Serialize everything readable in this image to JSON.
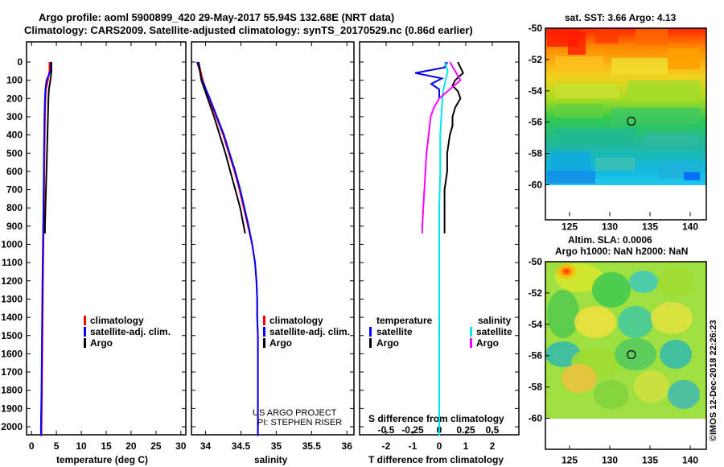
{
  "header": {
    "title_line1": "Argo profile: aoml 5900899_420 29-May-2017 55.94S 132.68E (NRT data)",
    "title_line2": "Climatology: CARS2009. Satellite-adjusted climatology: synTS_20170529.nc (0.86d earlier)"
  },
  "depth_ticks": [
    "0",
    "100",
    "200",
    "300",
    "400",
    "500",
    "600",
    "700",
    "800",
    "900",
    "1000",
    "1100",
    "1200",
    "1300",
    "1400",
    "1500",
    "1600",
    "1700",
    "1800",
    "1900",
    "2000"
  ],
  "colors": {
    "climatology": "#ff0000",
    "satellite": "#0000ff",
    "argo": "#000000",
    "sat_salinity": "#00e5ee",
    "clim_salinity": "#ff00ff"
  },
  "chart_data": [
    {
      "type": "line",
      "xlabel": "temperature (deg C)",
      "xlim": [
        -1,
        31
      ],
      "ylim": [
        2050,
        0
      ],
      "x_ticks": [
        "0",
        "5",
        "10",
        "15",
        "20",
        "25",
        "30"
      ],
      "legend": [
        "climatology",
        "satellite-adj. clim.",
        "Argo"
      ],
      "series": [
        {
          "name": "climatology",
          "color": "#ff0000",
          "depth": [
            0,
            50,
            100,
            150,
            200,
            300,
            500,
            800,
            1000,
            1200,
            1500,
            1800,
            2000,
            2050
          ],
          "values": [
            3.6,
            3.6,
            3.3,
            2.9,
            2.8,
            2.7,
            2.6,
            2.5,
            2.4,
            2.3,
            2.2,
            2.1,
            2.0,
            2.0
          ]
        },
        {
          "name": "satellite-adj. clim.",
          "color": "#0000ff",
          "depth": [
            0,
            50,
            100,
            150,
            200,
            300,
            500,
            800,
            1000,
            1200,
            1500,
            1800,
            2000,
            2050
          ],
          "values": [
            3.9,
            3.8,
            3.0,
            2.8,
            2.7,
            2.6,
            2.5,
            2.4,
            2.3,
            2.2,
            2.1,
            2.0,
            1.9,
            1.9
          ]
        },
        {
          "name": "Argo",
          "color": "#000000",
          "depth": [
            0,
            50,
            100,
            150,
            200,
            300,
            400,
            500,
            600,
            700,
            800,
            900,
            940
          ],
          "values": [
            4.0,
            4.0,
            3.8,
            3.5,
            3.4,
            3.3,
            3.2,
            3.1,
            3.0,
            2.9,
            2.8,
            2.7,
            2.7
          ]
        }
      ]
    },
    {
      "type": "line",
      "xlabel": "salinity",
      "xlim": [
        33.8,
        36.1
      ],
      "ylim": [
        2050,
        0
      ],
      "x_ticks": [
        "34",
        "34.5",
        "35",
        "35.5",
        "36"
      ],
      "legend": [
        "climatology",
        "satellite-adj. clim.",
        "Argo"
      ],
      "series": [
        {
          "name": "climatology",
          "color": "#ff0000",
          "depth": [
            0,
            50,
            100,
            200,
            300,
            400,
            500,
            600,
            700,
            800,
            900,
            1000,
            1100,
            1200,
            1300,
            1400,
            1500,
            1600,
            1800,
            2000,
            2050
          ],
          "values": [
            33.9,
            33.93,
            33.96,
            34.05,
            34.15,
            34.25,
            34.33,
            34.41,
            34.48,
            34.54,
            34.6,
            34.66,
            34.7,
            34.72,
            34.73,
            34.73,
            34.74,
            34.74,
            34.74,
            34.74,
            34.74
          ]
        },
        {
          "name": "satellite-adj. clim.",
          "color": "#0000ff",
          "depth": [
            0,
            50,
            100,
            200,
            300,
            400,
            500,
            600,
            700,
            800,
            900,
            1000,
            1100,
            1200,
            1300,
            1400,
            1500,
            1600,
            1800,
            2000,
            2050
          ],
          "values": [
            33.88,
            33.92,
            33.95,
            34.06,
            34.16,
            34.26,
            34.34,
            34.42,
            34.49,
            34.55,
            34.61,
            34.66,
            34.7,
            34.72,
            34.73,
            34.73,
            34.74,
            34.74,
            34.74,
            34.74,
            34.74
          ]
        },
        {
          "name": "Argo",
          "color": "#000000",
          "depth": [
            0,
            50,
            100,
            200,
            300,
            400,
            500,
            600,
            700,
            800,
            900,
            940
          ],
          "values": [
            33.9,
            33.92,
            33.94,
            34.03,
            34.12,
            34.2,
            34.28,
            34.35,
            34.42,
            34.49,
            34.54,
            34.56
          ]
        }
      ]
    },
    {
      "type": "line",
      "xlabel": "T difference from climatology",
      "xlim": [
        -3,
        3
      ],
      "ylim": [
        2050,
        0
      ],
      "x_ticks": [
        "-2",
        "-1",
        "0",
        "1",
        "2"
      ],
      "top_axis_label": "S difference from climatology",
      "top_ticks": [
        "-0.5",
        "-0.25",
        "0",
        "0.25",
        "0.5"
      ],
      "legend_temperature_title": "temperature",
      "legend_salinity_title": "salinity",
      "legend_temperature": [
        "satellite",
        "Argo"
      ],
      "legend_salinity": [
        "satellite",
        "Argo"
      ],
      "series": [
        {
          "name": "satellite",
          "group": "temperature",
          "color": "#0000ff",
          "depth": [
            0,
            30,
            60,
            90,
            120,
            150,
            200
          ],
          "values": [
            0.3,
            0.2,
            -0.9,
            0.1,
            -0.3,
            0.0,
            0.0
          ]
        },
        {
          "name": "Argo",
          "group": "temperature",
          "color": "#000000",
          "depth": [
            0,
            30,
            60,
            100,
            130,
            160,
            200,
            250,
            300,
            350,
            400,
            500,
            600,
            700,
            800,
            900,
            940
          ],
          "values": [
            0.7,
            0.8,
            0.9,
            0.6,
            0.5,
            0.7,
            0.8,
            0.6,
            0.5,
            0.5,
            0.4,
            0.3,
            0.3,
            0.2,
            0.2,
            0.2,
            0.2
          ]
        },
        {
          "name": "satellite",
          "group": "salinity",
          "color": "#00e5ee",
          "depth": [
            0,
            50,
            100,
            150,
            200,
            300,
            400,
            600,
            800,
            1000,
            1200,
            1500,
            1800,
            2050
          ],
          "values": [
            0.05,
            0.08,
            0.06,
            0.04,
            0.03,
            0.02,
            0.01,
            0.01,
            0.0,
            0.0,
            0.0,
            0.0,
            0.0,
            0.0
          ]
        },
        {
          "name": "Argo",
          "group": "salinity",
          "color": "#ff00ff",
          "depth": [
            0,
            50,
            100,
            150,
            200,
            250,
            300,
            400,
            500,
            600,
            700,
            800,
            900,
            940
          ],
          "values": [
            0.1,
            0.15,
            0.2,
            0.1,
            0.0,
            -0.05,
            -0.08,
            -0.1,
            -0.12,
            -0.13,
            -0.14,
            -0.15,
            -0.16,
            -0.16
          ]
        }
      ]
    },
    {
      "type": "heatmap",
      "title": "sat. SST: 3.66 Argo: 4.13",
      "xlim": [
        122,
        142
      ],
      "ylim": [
        -62,
        -50
      ],
      "x_ticks": [
        "125",
        "130",
        "135",
        "140"
      ],
      "y_ticks": [
        "-50",
        "-52",
        "-54",
        "-56",
        "-58",
        "-60"
      ],
      "argo_position": {
        "lon": 132.68,
        "lat": -55.94
      }
    },
    {
      "type": "heatmap",
      "title_line1": "Altim. SLA: 0.0006",
      "title_line2": "Argo h1000: NaN h2000: NaN",
      "xlim": [
        122,
        142
      ],
      "ylim": [
        -62,
        -50
      ],
      "x_ticks": [
        "125",
        "130",
        "135",
        "140"
      ],
      "y_ticks": [
        "-50",
        "-52",
        "-54",
        "-56",
        "-58",
        "-60"
      ],
      "argo_position": {
        "lon": 132.68,
        "lat": -55.94
      }
    }
  ],
  "credits": {
    "project_line1": "US ARGO PROJECT",
    "project_line2": "PI: STEPHEN RISER",
    "imos_stamp": "©IMOS 12-Dec-2018 22:26:23"
  }
}
